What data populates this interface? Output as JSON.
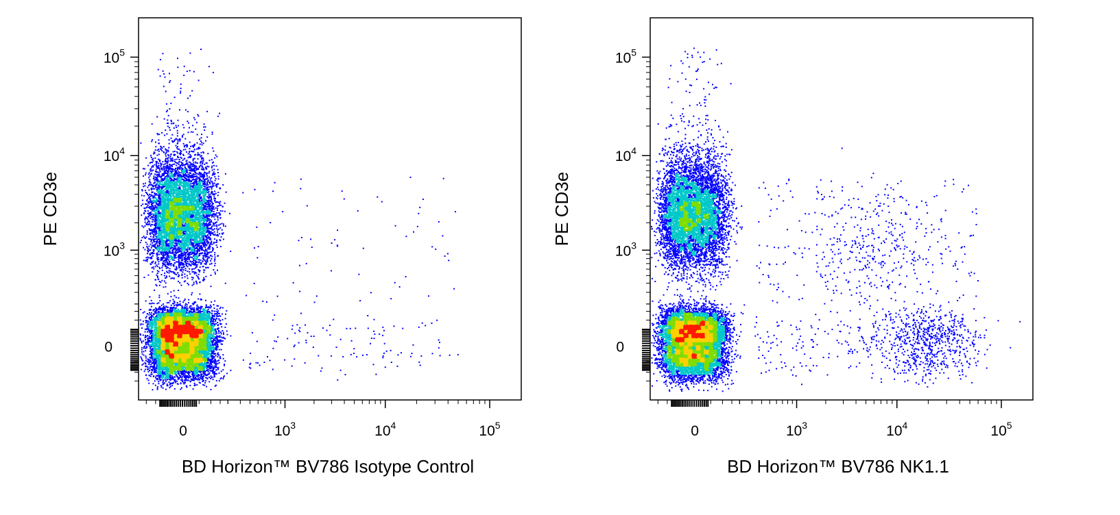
{
  "chart_data": [
    {
      "type": "scatter",
      "style": "density-pseudocolor",
      "xlabel": "BD Horizon™ BV786 Isotype Control",
      "ylabel": "PE CD3e",
      "x_scale": "biexponential",
      "y_scale": "biexponential",
      "xlim": [
        -200,
        200000
      ],
      "ylim": [
        -300,
        250000
      ],
      "x_ticks": [
        {
          "base": "0",
          "exp": "",
          "value": 0
        },
        {
          "base": "10",
          "exp": "3",
          "value": 1000
        },
        {
          "base": "10",
          "exp": "4",
          "value": 10000
        },
        {
          "base": "10",
          "exp": "5",
          "value": 100000
        }
      ],
      "y_ticks": [
        {
          "base": "0",
          "exp": "",
          "value": 0
        },
        {
          "base": "10",
          "exp": "3",
          "value": 1000
        },
        {
          "base": "10",
          "exp": "4",
          "value": 10000
        },
        {
          "base": "10",
          "exp": "5",
          "value": 100000
        }
      ],
      "populations": [
        {
          "name_hidden": true,
          "x_center": -10,
          "y_center": 2500,
          "x_spread": 60,
          "y_spread": 0.3,
          "share": 0.42
        },
        {
          "name_hidden": true,
          "x_center": -10,
          "y_center": 20,
          "x_spread": 60,
          "y_spread": 70,
          "share": 0.58
        }
      ],
      "sparse_events": "scattered events between 300 and 60000 on x, mostly near y 0 to 5000"
    },
    {
      "type": "scatter",
      "style": "density-pseudocolor",
      "xlabel": "BD Horizon™ BV786 NK1.1",
      "ylabel": "PE CD3e",
      "x_scale": "biexponential",
      "y_scale": "biexponential",
      "xlim": [
        -200,
        200000
      ],
      "ylim": [
        -300,
        250000
      ],
      "x_ticks": [
        {
          "base": "0",
          "exp": "",
          "value": 0
        },
        {
          "base": "10",
          "exp": "3",
          "value": 1000
        },
        {
          "base": "10",
          "exp": "4",
          "value": 10000
        },
        {
          "base": "10",
          "exp": "5",
          "value": 100000
        }
      ],
      "y_ticks": [
        {
          "base": "0",
          "exp": "",
          "value": 0
        },
        {
          "base": "10",
          "exp": "3",
          "value": 1000
        },
        {
          "base": "10",
          "exp": "4",
          "value": 10000
        },
        {
          "base": "10",
          "exp": "5",
          "value": 100000
        }
      ],
      "populations": [
        {
          "name_hidden": true,
          "x_center": -10,
          "y_center": 2500,
          "x_spread": 60,
          "y_spread": 0.3,
          "share": 0.4
        },
        {
          "name_hidden": true,
          "x_center": -10,
          "y_center": 20,
          "x_spread": 60,
          "y_spread": 70,
          "share": 0.54
        },
        {
          "name_hidden": true,
          "x_center": 20000,
          "y_center": 20,
          "x_spread": 0.25,
          "y_spread": 70,
          "share": 0.04
        },
        {
          "name_hidden": true,
          "x_center": 6000,
          "y_center": 1200,
          "x_spread": 0.35,
          "y_spread": 0.3,
          "share": 0.02
        }
      ],
      "sparse_events": "scattered events between 300 and 60000 on x; NK1.1+ cluster near x 20000, y 0"
    }
  ],
  "colors": {
    "frame": "#000000",
    "density_low": "#0000ff",
    "density_mid": "#00c8c8",
    "density_midhigh": "#7fdc00",
    "density_high": "#ffd000",
    "density_peak": "#ff1a00"
  }
}
